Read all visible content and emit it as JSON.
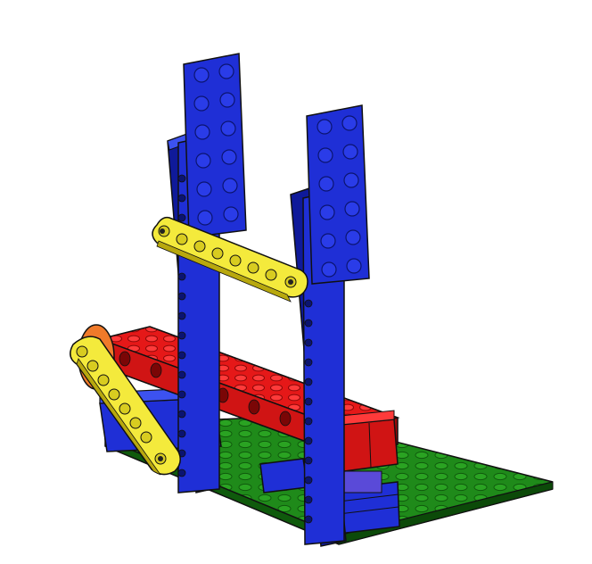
{
  "scene": {
    "colors": {
      "background": "#ffffff",
      "blue": "#1f2fd6",
      "blue_dark": "#0f1a9a",
      "blue_light": "#3c52f0",
      "red": "#e51818",
      "red_dark": "#9e0a0a",
      "yellow": "#f4ea3c",
      "yellow_dark": "#b8a80e",
      "green": "#1f8a1a",
      "green_dark": "#0f5a0c",
      "orange": "#f07a2a",
      "outline": "#111111"
    },
    "parts": [
      "green-baseplate",
      "blue-base-bricks",
      "red-beam",
      "blue-vertical-beam-left",
      "blue-vertical-beam-right",
      "blue-top-plate-left",
      "blue-top-plate-right",
      "yellow-liftarm-upper",
      "yellow-liftarm-lower",
      "orange-pulley-wheel",
      "red-brick-block"
    ]
  }
}
